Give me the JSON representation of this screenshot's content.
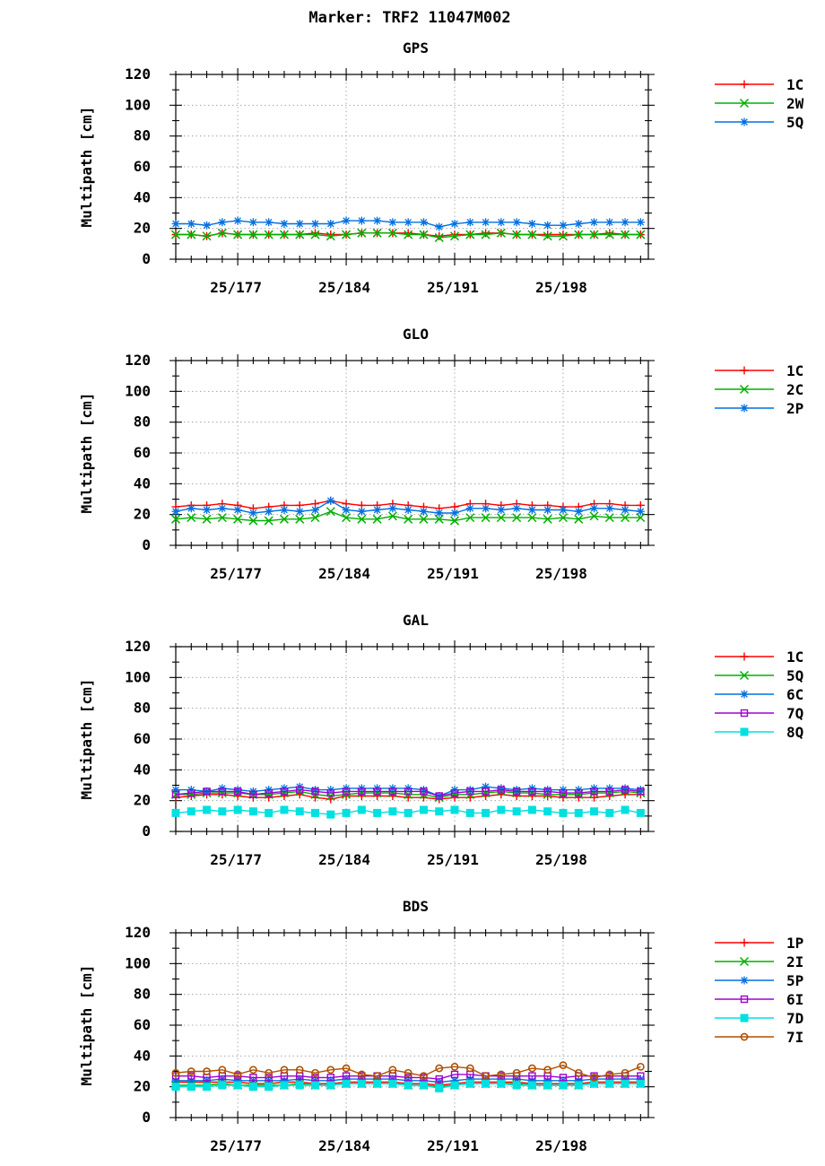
{
  "title": "Marker: TRF2 11047M002",
  "colors": {
    "red": "#ff0000",
    "green": "#00b000",
    "blue": "#0070e0",
    "purple": "#a000d0",
    "cyan": "#00e0e0",
    "brown": "#b05000"
  },
  "chart_data": [
    {
      "type": "line",
      "title": "GPS",
      "ylabel": "Multipath [cm]",
      "ylim": [
        0,
        120
      ],
      "yticks": [
        0,
        20,
        40,
        60,
        80,
        100,
        120
      ],
      "xlim": [
        172,
        202.5
      ],
      "xticks": [
        {
          "value": 176,
          "label": "25/177"
        },
        {
          "value": 183,
          "label": "25/184"
        },
        {
          "value": 190,
          "label": "25/191"
        },
        {
          "value": 197,
          "label": "25/198"
        }
      ],
      "grid": true,
      "legend": "right",
      "x": [
        172,
        173,
        174,
        175,
        176,
        177,
        178,
        179,
        180,
        181,
        182,
        183,
        184,
        185,
        186,
        187,
        188,
        189,
        190,
        191,
        192,
        193,
        194,
        195,
        196,
        197,
        198,
        199,
        200,
        201,
        202
      ],
      "series": [
        {
          "name": "1C",
          "color": "red",
          "marker": "plus",
          "values": [
            16,
            16,
            15,
            17,
            16,
            16,
            16,
            16,
            16,
            17,
            16,
            16,
            17,
            17,
            17,
            17,
            16,
            15,
            16,
            16,
            17,
            17,
            16,
            16,
            16,
            16,
            16,
            16,
            17,
            16,
            16
          ]
        },
        {
          "name": "2W",
          "color": "green",
          "marker": "x",
          "values": [
            16,
            16,
            15,
            17,
            16,
            16,
            16,
            16,
            16,
            16,
            15,
            16,
            17,
            17,
            17,
            16,
            16,
            14,
            15,
            16,
            16,
            17,
            16,
            16,
            15,
            15,
            16,
            16,
            16,
            16,
            16
          ]
        },
        {
          "name": "5Q",
          "color": "blue",
          "marker": "star",
          "values": [
            23,
            23,
            22,
            24,
            25,
            24,
            24,
            23,
            23,
            23,
            23,
            25,
            25,
            25,
            24,
            24,
            24,
            21,
            23,
            24,
            24,
            24,
            24,
            23,
            22,
            22,
            23,
            24,
            24,
            24,
            24
          ]
        }
      ]
    },
    {
      "type": "line",
      "title": "GLO",
      "ylabel": "Multipath [cm]",
      "ylim": [
        0,
        120
      ],
      "yticks": [
        0,
        20,
        40,
        60,
        80,
        100,
        120
      ],
      "xlim": [
        172,
        202.5
      ],
      "xticks": [
        {
          "value": 176,
          "label": "25/177"
        },
        {
          "value": 183,
          "label": "25/184"
        },
        {
          "value": 190,
          "label": "25/191"
        },
        {
          "value": 197,
          "label": "25/198"
        }
      ],
      "grid": true,
      "legend": "right",
      "x": [
        172,
        173,
        174,
        175,
        176,
        177,
        178,
        179,
        180,
        181,
        182,
        183,
        184,
        185,
        186,
        187,
        188,
        189,
        190,
        191,
        192,
        193,
        194,
        195,
        196,
        197,
        198,
        199,
        200,
        201,
        202
      ],
      "series": [
        {
          "name": "1C",
          "color": "red",
          "marker": "plus",
          "values": [
            25,
            26,
            26,
            27,
            26,
            24,
            25,
            26,
            26,
            27,
            29,
            27,
            26,
            26,
            27,
            26,
            25,
            24,
            25,
            27,
            27,
            26,
            27,
            26,
            26,
            25,
            25,
            27,
            27,
            26,
            26
          ]
        },
        {
          "name": "2C",
          "color": "green",
          "marker": "x",
          "values": [
            17,
            18,
            17,
            18,
            17,
            16,
            16,
            17,
            17,
            18,
            22,
            18,
            17,
            17,
            19,
            17,
            17,
            17,
            16,
            18,
            18,
            18,
            18,
            18,
            17,
            18,
            17,
            19,
            18,
            18,
            18
          ]
        },
        {
          "name": "2P",
          "color": "blue",
          "marker": "star",
          "values": [
            22,
            24,
            23,
            24,
            23,
            21,
            22,
            23,
            22,
            23,
            29,
            23,
            22,
            23,
            24,
            23,
            22,
            21,
            21,
            24,
            24,
            23,
            24,
            23,
            23,
            23,
            22,
            24,
            24,
            23,
            22
          ]
        }
      ]
    },
    {
      "type": "line",
      "title": "GAL",
      "ylabel": "Multipath [cm]",
      "ylim": [
        0,
        120
      ],
      "yticks": [
        0,
        20,
        40,
        60,
        80,
        100,
        120
      ],
      "xlim": [
        172,
        202.5
      ],
      "xticks": [
        {
          "value": 176,
          "label": "25/177"
        },
        {
          "value": 183,
          "label": "25/184"
        },
        {
          "value": 190,
          "label": "25/191"
        },
        {
          "value": 197,
          "label": "25/198"
        }
      ],
      "grid": true,
      "legend": "right",
      "x": [
        172,
        173,
        174,
        175,
        176,
        177,
        178,
        179,
        180,
        181,
        182,
        183,
        184,
        185,
        186,
        187,
        188,
        189,
        190,
        191,
        192,
        193,
        194,
        195,
        196,
        197,
        198,
        199,
        200,
        201,
        202
      ],
      "series": [
        {
          "name": "1C",
          "color": "red",
          "marker": "plus",
          "values": [
            22,
            23,
            24,
            24,
            23,
            22,
            22,
            23,
            24,
            22,
            21,
            23,
            23,
            23,
            23,
            22,
            22,
            21,
            22,
            22,
            23,
            24,
            23,
            23,
            23,
            22,
            22,
            22,
            23,
            24,
            24
          ]
        },
        {
          "name": "5Q",
          "color": "green",
          "marker": "x",
          "values": [
            24,
            24,
            25,
            25,
            25,
            24,
            24,
            25,
            26,
            24,
            23,
            24,
            25,
            25,
            25,
            24,
            24,
            22,
            24,
            24,
            25,
            26,
            25,
            25,
            24,
            24,
            24,
            25,
            25,
            26,
            25
          ]
        },
        {
          "name": "6C",
          "color": "blue",
          "marker": "star",
          "values": [
            27,
            27,
            26,
            28,
            27,
            26,
            27,
            28,
            29,
            27,
            27,
            28,
            28,
            28,
            28,
            28,
            27,
            23,
            27,
            27,
            29,
            28,
            27,
            28,
            27,
            27,
            27,
            28,
            28,
            28,
            27
          ]
        },
        {
          "name": "7Q",
          "color": "purple",
          "marker": "square",
          "values": [
            24,
            25,
            26,
            26,
            26,
            24,
            25,
            26,
            27,
            26,
            25,
            26,
            26,
            26,
            26,
            26,
            26,
            23,
            25,
            26,
            26,
            27,
            26,
            26,
            26,
            25,
            25,
            26,
            26,
            27,
            26
          ]
        },
        {
          "name": "8Q",
          "color": "cyan",
          "marker": "filled-square",
          "values": [
            12,
            13,
            14,
            13,
            14,
            13,
            12,
            14,
            13,
            12,
            11,
            12,
            14,
            12,
            13,
            12,
            14,
            13,
            14,
            12,
            12,
            14,
            13,
            14,
            13,
            12,
            12,
            13,
            12,
            14,
            12
          ]
        }
      ]
    },
    {
      "type": "line",
      "title": "BDS",
      "ylabel": "Multipath [cm]",
      "ylim": [
        0,
        120
      ],
      "yticks": [
        0,
        20,
        40,
        60,
        80,
        100,
        120
      ],
      "xlim": [
        172,
        202.5
      ],
      "xticks": [
        {
          "value": 176,
          "label": "25/177"
        },
        {
          "value": 183,
          "label": "25/184"
        },
        {
          "value": 190,
          "label": "25/191"
        },
        {
          "value": 197,
          "label": "25/198"
        }
      ],
      "grid": true,
      "legend": "right",
      "x": [
        172,
        173,
        174,
        175,
        176,
        177,
        178,
        179,
        180,
        181,
        182,
        183,
        184,
        185,
        186,
        187,
        188,
        189,
        190,
        191,
        192,
        193,
        194,
        195,
        196,
        197,
        198,
        199,
        200,
        201,
        202
      ],
      "series": [
        {
          "name": "1P",
          "color": "red",
          "marker": "plus",
          "values": [
            23,
            23,
            23,
            23,
            23,
            22,
            22,
            23,
            23,
            22,
            22,
            23,
            23,
            23,
            23,
            22,
            22,
            21,
            22,
            23,
            23,
            23,
            23,
            22,
            22,
            22,
            22,
            23,
            23,
            23,
            23
          ]
        },
        {
          "name": "2I",
          "color": "green",
          "marker": "x",
          "values": [
            21,
            21,
            21,
            22,
            21,
            21,
            21,
            21,
            22,
            21,
            21,
            22,
            22,
            22,
            22,
            21,
            21,
            20,
            21,
            22,
            22,
            22,
            22,
            21,
            21,
            21,
            21,
            22,
            22,
            22,
            22
          ]
        },
        {
          "name": "5P",
          "color": "blue",
          "marker": "star",
          "values": [
            24,
            24,
            24,
            25,
            24,
            24,
            24,
            24,
            25,
            24,
            24,
            25,
            25,
            25,
            25,
            24,
            24,
            23,
            24,
            25,
            25,
            25,
            25,
            24,
            24,
            24,
            24,
            25,
            25,
            25,
            25
          ]
        },
        {
          "name": "6I",
          "color": "purple",
          "marker": "square",
          "values": [
            27,
            27,
            26,
            27,
            27,
            26,
            26,
            27,
            27,
            26,
            26,
            27,
            27,
            27,
            27,
            26,
            26,
            25,
            28,
            28,
            27,
            27,
            27,
            27,
            27,
            26,
            27,
            27,
            27,
            27,
            27
          ]
        },
        {
          "name": "7D",
          "color": "cyan",
          "marker": "filled-square",
          "values": [
            20,
            20,
            20,
            21,
            21,
            20,
            20,
            21,
            21,
            21,
            21,
            22,
            22,
            22,
            22,
            21,
            21,
            19,
            21,
            22,
            22,
            22,
            21,
            21,
            21,
            21,
            21,
            22,
            22,
            22,
            22
          ]
        },
        {
          "name": "7I",
          "color": "brown",
          "marker": "circle",
          "values": [
            29,
            30,
            30,
            31,
            28,
            31,
            29,
            31,
            31,
            29,
            31,
            32,
            28,
            27,
            31,
            29,
            27,
            32,
            33,
            32,
            27,
            28,
            29,
            32,
            31,
            34,
            29,
            26,
            28,
            29,
            33
          ]
        }
      ]
    }
  ]
}
